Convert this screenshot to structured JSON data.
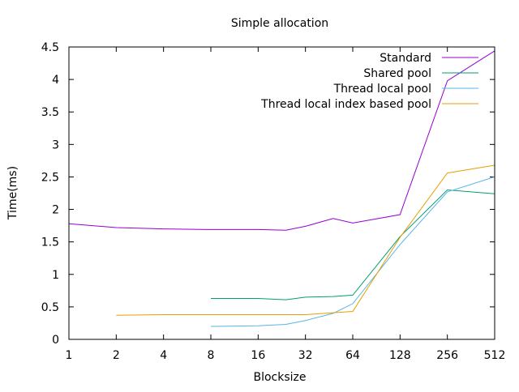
{
  "chart_data": {
    "type": "line",
    "title": "Simple allocation",
    "xlabel": "Blocksize",
    "ylabel": "Time(ms)",
    "x_scale": "log2",
    "xlim": [
      1,
      512
    ],
    "ylim": [
      0,
      4.5
    ],
    "x_ticks": [
      {
        "value": 1,
        "label": "1"
      },
      {
        "value": 2,
        "label": "2"
      },
      {
        "value": 4,
        "label": "4"
      },
      {
        "value": 8,
        "label": "8"
      },
      {
        "value": 16,
        "label": "16"
      },
      {
        "value": 32,
        "label": "32"
      },
      {
        "value": 64,
        "label": "64"
      },
      {
        "value": 128,
        "label": "128"
      },
      {
        "value": 256,
        "label": "256"
      },
      {
        "value": 512,
        "label": "512"
      }
    ],
    "y_ticks": [
      {
        "value": 0,
        "label": "0"
      },
      {
        "value": 0.5,
        "label": "0.5"
      },
      {
        "value": 1,
        "label": "1"
      },
      {
        "value": 1.5,
        "label": "1.5"
      },
      {
        "value": 2,
        "label": "2"
      },
      {
        "value": 2.5,
        "label": "2.5"
      },
      {
        "value": 3,
        "label": "3"
      },
      {
        "value": 3.5,
        "label": "3.5"
      },
      {
        "value": 4,
        "label": "4"
      },
      {
        "value": 4.5,
        "label": "4.5"
      }
    ],
    "grid": false,
    "legend_position": "top-right",
    "series": [
      {
        "name": "Standard",
        "color": "#9400d3",
        "points": [
          [
            1,
            1.78
          ],
          [
            2,
            1.72
          ],
          [
            4,
            1.7
          ],
          [
            8,
            1.69
          ],
          [
            16,
            1.69
          ],
          [
            24,
            1.68
          ],
          [
            32,
            1.74
          ],
          [
            48,
            1.86
          ],
          [
            64,
            1.79
          ],
          [
            128,
            1.92
          ],
          [
            256,
            3.98
          ],
          [
            512,
            4.44
          ]
        ]
      },
      {
        "name": "Shared pool",
        "color": "#009e73",
        "points": [
          [
            8,
            0.63
          ],
          [
            16,
            0.63
          ],
          [
            24,
            0.61
          ],
          [
            32,
            0.65
          ],
          [
            48,
            0.66
          ],
          [
            64,
            0.68
          ],
          [
            128,
            1.58
          ],
          [
            256,
            2.3
          ],
          [
            512,
            2.24
          ]
        ]
      },
      {
        "name": "Thread local pool",
        "color": "#56b4e9",
        "points": [
          [
            8,
            0.2
          ],
          [
            16,
            0.21
          ],
          [
            24,
            0.23
          ],
          [
            32,
            0.29
          ],
          [
            48,
            0.4
          ],
          [
            64,
            0.55
          ],
          [
            128,
            1.46
          ],
          [
            256,
            2.27
          ],
          [
            512,
            2.5
          ]
        ]
      },
      {
        "name": "Thread local index based pool",
        "color": "#e69f00",
        "points": [
          [
            2,
            0.37
          ],
          [
            4,
            0.38
          ],
          [
            8,
            0.38
          ],
          [
            16,
            0.38
          ],
          [
            32,
            0.38
          ],
          [
            48,
            0.41
          ],
          [
            64,
            0.43
          ],
          [
            128,
            1.57
          ],
          [
            256,
            2.56
          ],
          [
            512,
            2.68
          ]
        ]
      }
    ]
  }
}
